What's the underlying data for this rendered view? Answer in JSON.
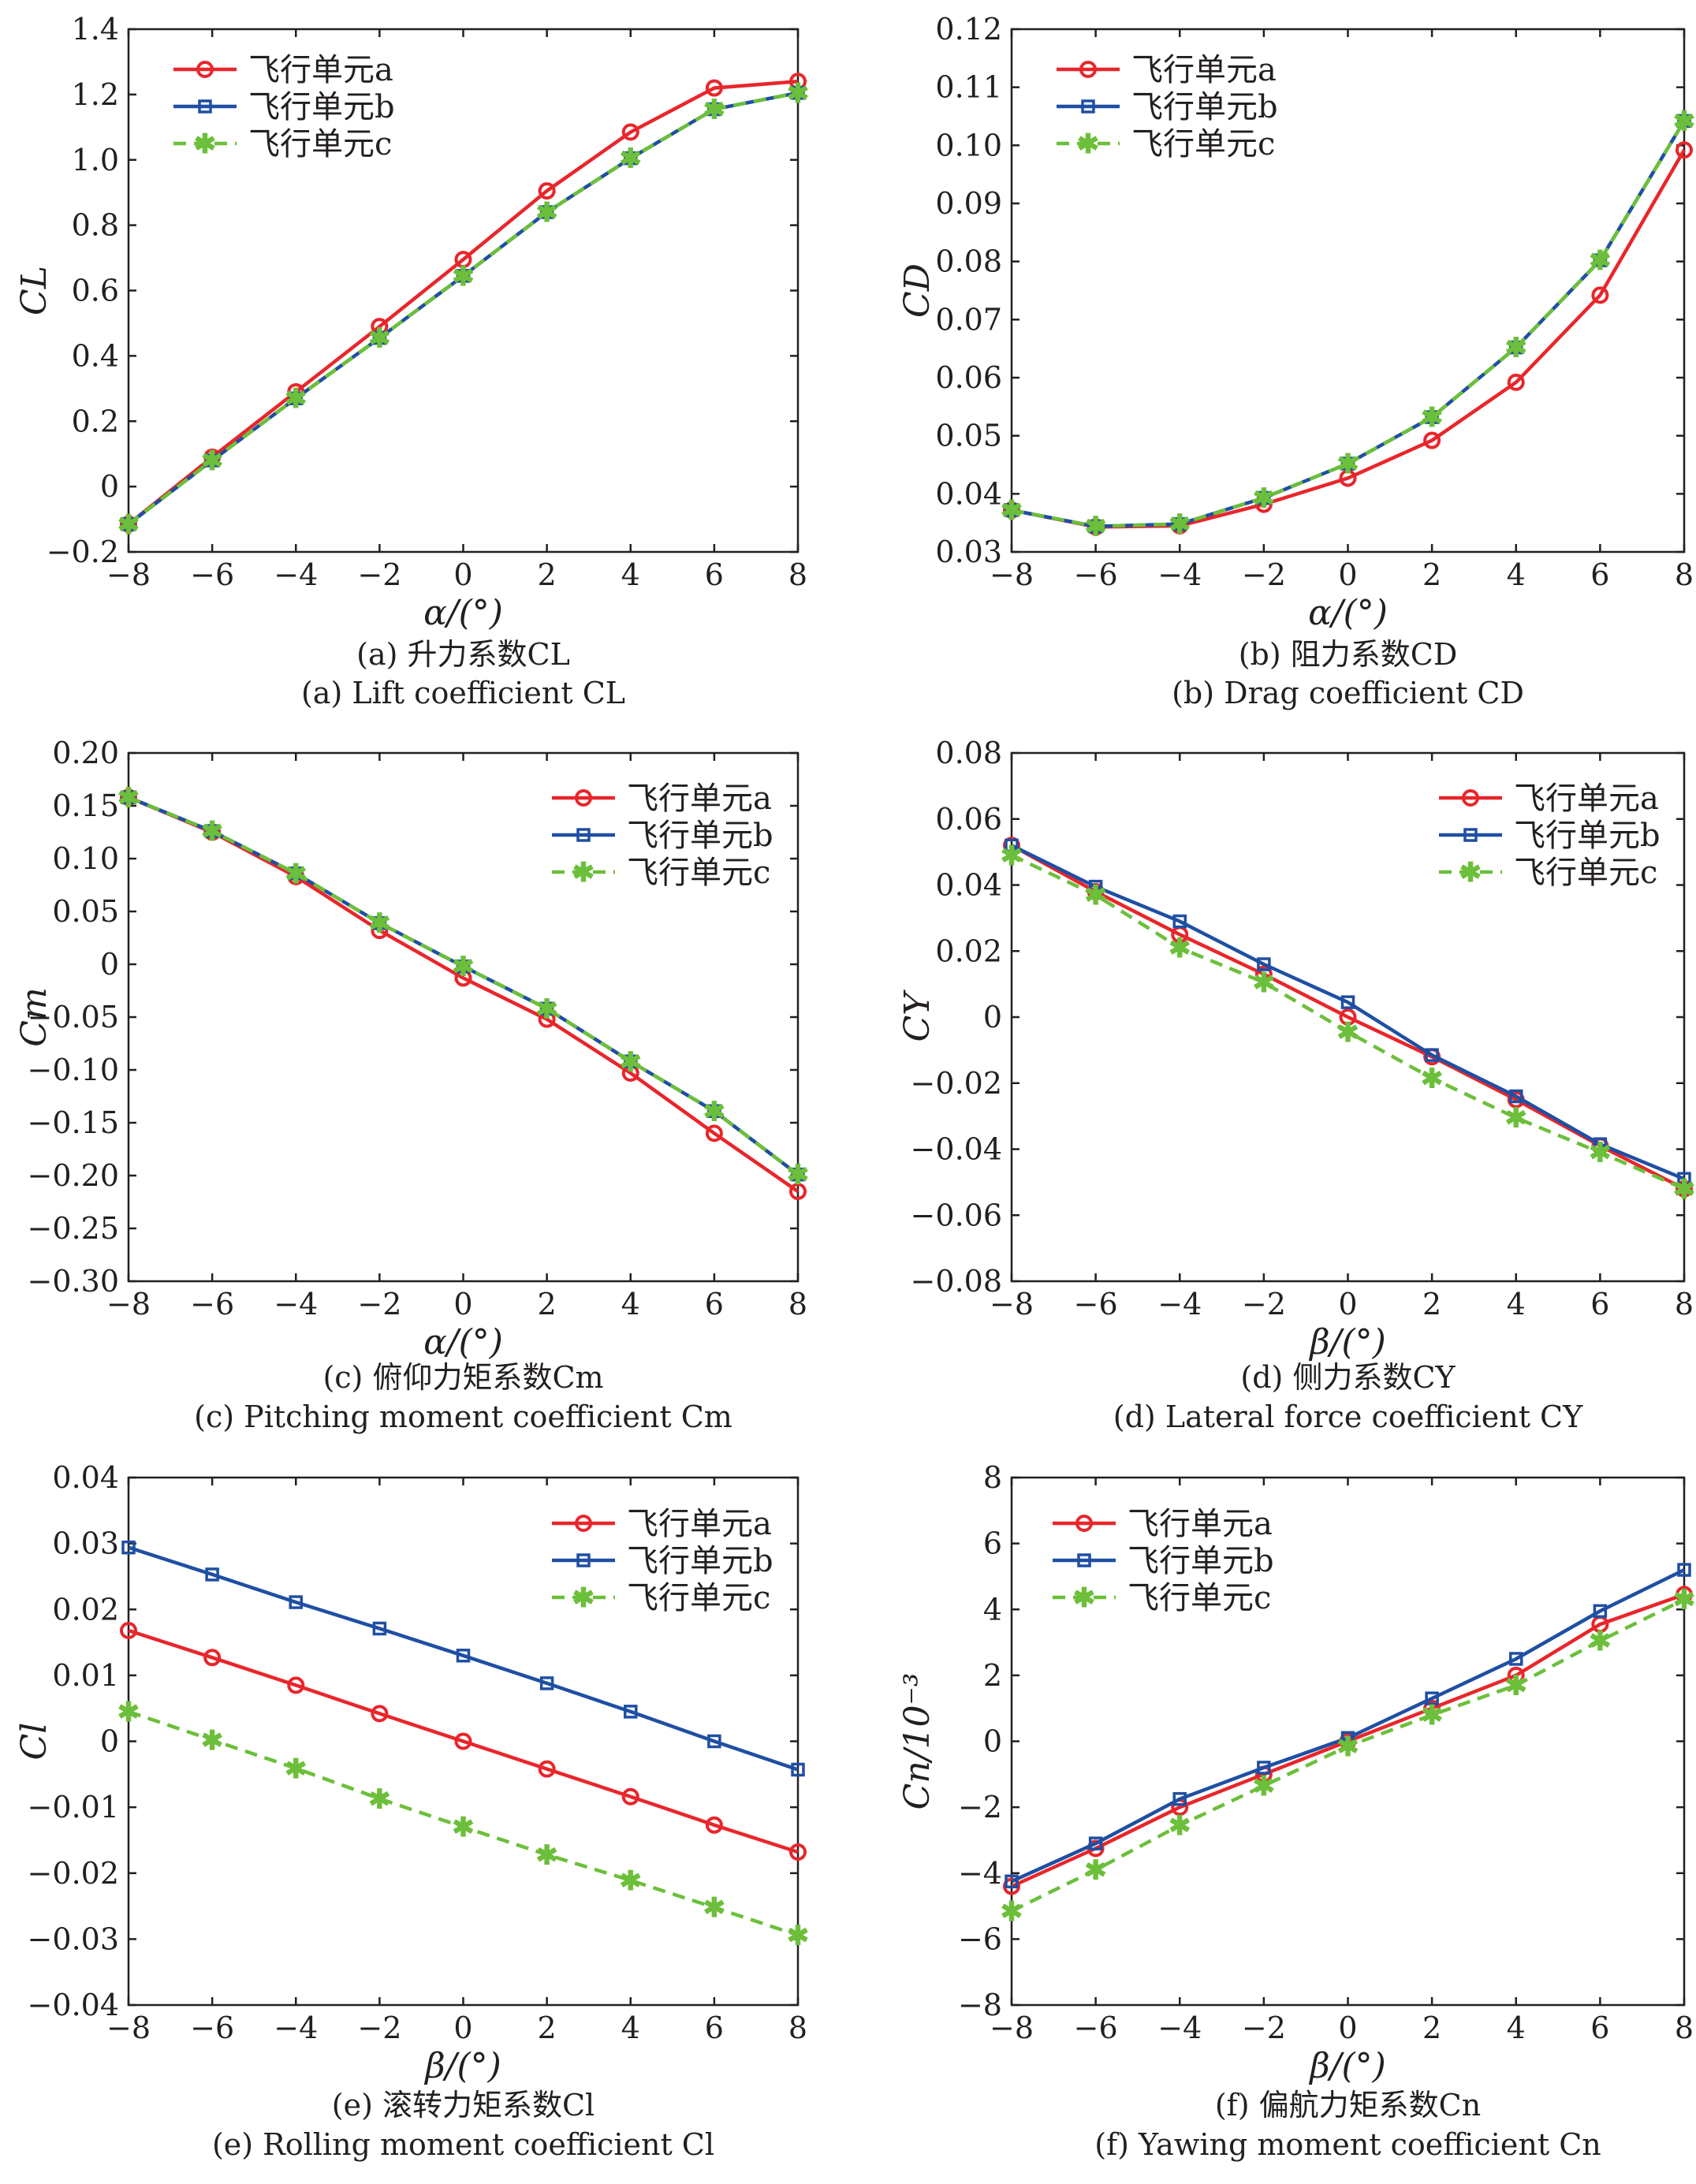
{
  "colors": {
    "a": "#e8262b",
    "b": "#1f4fa3",
    "c": "#6cbf3a"
  },
  "legend_markers": {
    "a": "circle",
    "b": "square",
    "c": "star"
  },
  "chart_data": [
    {
      "id": "a",
      "type": "line",
      "caption_cn": "(a) 升力系数CL",
      "caption_en": "(a) Lift coefficient CL",
      "xlabel": "α/(°)",
      "ylabel": "CL",
      "xlim": [
        -8,
        8
      ],
      "ylim": [
        -0.2,
        1.4
      ],
      "xticks": [
        -8,
        -6,
        -4,
        -2,
        0,
        2,
        4,
        6,
        8
      ],
      "yticks": [
        -0.2,
        0,
        0.2,
        0.4,
        0.6,
        0.8,
        1.0,
        1.2,
        1.4
      ],
      "ytick_labels": [
        "−0.2",
        "0",
        "0.2",
        "0.4",
        "0.6",
        "0.8",
        "1.0",
        "1.2",
        "1.4"
      ],
      "xtick_labels": [
        "−8",
        "−6",
        "−4",
        "−2",
        "0",
        "2",
        "4",
        "6",
        "8"
      ],
      "legend_position": "top-left",
      "x": [
        -8,
        -6,
        -4,
        -2,
        0,
        2,
        4,
        6,
        8
      ],
      "series": [
        {
          "name": "飞行单元a",
          "key": "a",
          "values": [
            -0.115,
            0.09,
            0.29,
            0.49,
            0.695,
            0.905,
            1.085,
            1.22,
            1.24
          ]
        },
        {
          "name": "飞行单元b",
          "key": "b",
          "values": [
            -0.115,
            0.08,
            0.27,
            0.455,
            0.645,
            0.84,
            1.005,
            1.155,
            1.205
          ]
        },
        {
          "name": "飞行单元c",
          "key": "c",
          "values": [
            -0.115,
            0.08,
            0.27,
            0.455,
            0.645,
            0.84,
            1.005,
            1.155,
            1.205
          ]
        }
      ]
    },
    {
      "id": "b",
      "type": "line",
      "caption_cn": "(b) 阻力系数CD",
      "caption_en": "(b) Drag coefficient CD",
      "xlabel": "α/(°)",
      "ylabel": "CD",
      "xlim": [
        -8,
        8
      ],
      "ylim": [
        0.03,
        0.12
      ],
      "xticks": [
        -8,
        -6,
        -4,
        -2,
        0,
        2,
        4,
        6,
        8
      ],
      "yticks": [
        0.03,
        0.04,
        0.05,
        0.06,
        0.07,
        0.08,
        0.09,
        0.1,
        0.11,
        0.12
      ],
      "ytick_labels": [
        "0.03",
        "0.04",
        "0.05",
        "0.06",
        "0.07",
        "0.08",
        "0.09",
        "0.10",
        "0.11",
        "0.12"
      ],
      "xtick_labels": [
        "−8",
        "−6",
        "−4",
        "−2",
        "0",
        "2",
        "4",
        "6",
        "8"
      ],
      "legend_position": "top-left",
      "x": [
        -8,
        -6,
        -4,
        -2,
        0,
        2,
        4,
        6,
        8
      ],
      "series": [
        {
          "name": "飞行单元a",
          "key": "a",
          "values": [
            0.0372,
            0.0343,
            0.0345,
            0.0382,
            0.0427,
            0.0492,
            0.0592,
            0.0742,
            0.0992
          ]
        },
        {
          "name": "飞行单元b",
          "key": "b",
          "values": [
            0.0372,
            0.0344,
            0.0348,
            0.0393,
            0.0452,
            0.0532,
            0.0652,
            0.0802,
            0.1042
          ]
        },
        {
          "name": "飞行单元c",
          "key": "c",
          "values": [
            0.0372,
            0.0344,
            0.0348,
            0.0393,
            0.0452,
            0.0532,
            0.0652,
            0.0802,
            0.1042
          ]
        }
      ]
    },
    {
      "id": "c",
      "type": "line",
      "caption_cn": "(c) 俯仰力矩系数Cm",
      "caption_en": "(c) Pitching moment coefficient Cm",
      "xlabel": "α/(°)",
      "ylabel": "Cm",
      "xlim": [
        -8,
        8
      ],
      "ylim": [
        -0.3,
        0.2
      ],
      "xticks": [
        -8,
        -6,
        -4,
        -2,
        0,
        2,
        4,
        6,
        8
      ],
      "yticks": [
        -0.3,
        -0.25,
        -0.2,
        -0.15,
        -0.1,
        -0.05,
        0,
        0.05,
        0.1,
        0.15,
        0.2
      ],
      "ytick_labels": [
        "−0.30",
        "−0.25",
        "−0.20",
        "−0.15",
        "−0.10",
        "−0.05",
        "0",
        "0.05",
        "0.10",
        "0.15",
        "0.20"
      ],
      "xtick_labels": [
        "−8",
        "−6",
        "−4",
        "−2",
        "0",
        "2",
        "4",
        "6",
        "8"
      ],
      "legend_position": "top-right",
      "x": [
        -8,
        -6,
        -4,
        -2,
        0,
        2,
        4,
        6,
        8
      ],
      "series": [
        {
          "name": "飞行单元a",
          "key": "a",
          "values": [
            0.158,
            0.125,
            0.083,
            0.032,
            -0.013,
            -0.052,
            -0.103,
            -0.16,
            -0.215
          ]
        },
        {
          "name": "飞行单元b",
          "key": "b",
          "values": [
            0.158,
            0.126,
            0.086,
            0.039,
            -0.002,
            -0.042,
            -0.092,
            -0.139,
            -0.199
          ]
        },
        {
          "name": "飞行单元c",
          "key": "c",
          "values": [
            0.158,
            0.126,
            0.086,
            0.039,
            -0.002,
            -0.042,
            -0.092,
            -0.139,
            -0.199
          ]
        }
      ]
    },
    {
      "id": "d",
      "type": "line",
      "caption_cn": "(d) 侧力系数CY",
      "caption_en": "(d) Lateral force coefficient CY",
      "xlabel": "β/(°)",
      "ylabel": "CY",
      "xlim": [
        -8,
        8
      ],
      "ylim": [
        -0.08,
        0.08
      ],
      "xticks": [
        -8,
        -6,
        -4,
        -2,
        0,
        2,
        4,
        6,
        8
      ],
      "yticks": [
        -0.08,
        -0.06,
        -0.04,
        -0.02,
        0,
        0.02,
        0.04,
        0.06,
        0.08
      ],
      "ytick_labels": [
        "−0.08",
        "−0.06",
        "−0.04",
        "−0.02",
        "0",
        "0.02",
        "0.04",
        "0.06",
        "0.08"
      ],
      "xtick_labels": [
        "−8",
        "−6",
        "−4",
        "−2",
        "0",
        "2",
        "4",
        "6",
        "8"
      ],
      "legend_position": "top-right",
      "x": [
        -8,
        -6,
        -4,
        -2,
        0,
        2,
        4,
        6,
        8
      ],
      "series": [
        {
          "name": "飞行单元a",
          "key": "a",
          "values": [
            0.052,
            0.038,
            0.025,
            0.013,
            0.0,
            -0.012,
            -0.025,
            -0.039,
            -0.052
          ]
        },
        {
          "name": "飞行单元b",
          "key": "b",
          "values": [
            0.052,
            0.0395,
            0.029,
            0.016,
            0.0045,
            -0.0115,
            -0.024,
            -0.0385,
            -0.049
          ]
        },
        {
          "name": "飞行单元c",
          "key": "c",
          "values": [
            0.049,
            0.037,
            0.021,
            0.0105,
            -0.0045,
            -0.0185,
            -0.0305,
            -0.041,
            -0.052
          ]
        }
      ]
    },
    {
      "id": "e",
      "type": "line",
      "caption_cn": "(e) 滚转力矩系数Cl",
      "caption_en": "(e) Rolling moment coefficient Cl",
      "xlabel": "β/(°)",
      "ylabel": "Cl",
      "xlim": [
        -8,
        8
      ],
      "ylim": [
        -0.04,
        0.04
      ],
      "xticks": [
        -8,
        -6,
        -4,
        -2,
        0,
        2,
        4,
        6,
        8
      ],
      "yticks": [
        -0.04,
        -0.03,
        -0.02,
        -0.01,
        0,
        0.01,
        0.02,
        0.03,
        0.04
      ],
      "ytick_labels": [
        "−0.04",
        "−0.03",
        "−0.02",
        "−0.01",
        "0",
        "0.01",
        "0.02",
        "0.03",
        "0.04"
      ],
      "xtick_labels": [
        "−8",
        "−6",
        "−4",
        "−2",
        "0",
        "2",
        "4",
        "6",
        "8"
      ],
      "legend_position": "top-right",
      "x": [
        -8,
        -6,
        -4,
        -2,
        0,
        2,
        4,
        6,
        8
      ],
      "series": [
        {
          "name": "飞行单元a",
          "key": "a",
          "values": [
            0.0168,
            0.0127,
            0.0085,
            0.0042,
            0.0,
            -0.0042,
            -0.0084,
            -0.0127,
            -0.0168
          ]
        },
        {
          "name": "飞行单元b",
          "key": "b",
          "values": [
            0.0294,
            0.0253,
            0.0211,
            0.0171,
            0.013,
            0.0088,
            0.0045,
            0.0,
            -0.0043
          ]
        },
        {
          "name": "飞行单元c",
          "key": "c",
          "values": [
            0.0045,
            0.0002,
            -0.0041,
            -0.0087,
            -0.013,
            -0.0172,
            -0.0211,
            -0.0252,
            -0.0294
          ]
        }
      ]
    },
    {
      "id": "f",
      "type": "line",
      "caption_cn": "(f) 偏航力矩系数Cn",
      "caption_en": "(f) Yawing moment coefficient Cn",
      "xlabel": "β/(°)",
      "ylabel": "Cn/10⁻³",
      "xlim": [
        -8,
        8
      ],
      "ylim": [
        -8,
        8
      ],
      "xticks": [
        -8,
        -6,
        -4,
        -2,
        0,
        2,
        4,
        6,
        8
      ],
      "yticks": [
        -8,
        -6,
        -4,
        -2,
        0,
        2,
        4,
        6,
        8
      ],
      "ytick_labels": [
        "−8",
        "−6",
        "−4",
        "−2",
        "0",
        "2",
        "4",
        "6",
        "8"
      ],
      "xtick_labels": [
        "−8",
        "−6",
        "−4",
        "−2",
        "0",
        "2",
        "4",
        "6",
        "8"
      ],
      "legend_position": "top-left",
      "x": [
        -8,
        -6,
        -4,
        -2,
        0,
        2,
        4,
        6,
        8
      ],
      "series": [
        {
          "name": "飞行单元a",
          "key": "a",
          "values": [
            -4.4,
            -3.25,
            -2.0,
            -1.0,
            0.0,
            1.0,
            2.0,
            3.55,
            4.45
          ]
        },
        {
          "name": "飞行单元b",
          "key": "b",
          "values": [
            -4.25,
            -3.1,
            -1.75,
            -0.8,
            0.1,
            1.3,
            2.5,
            3.95,
            5.2
          ]
        },
        {
          "name": "飞行单元c",
          "key": "c",
          "values": [
            -5.15,
            -3.9,
            -2.55,
            -1.35,
            -0.15,
            0.8,
            1.7,
            3.05,
            4.3
          ]
        }
      ]
    }
  ]
}
